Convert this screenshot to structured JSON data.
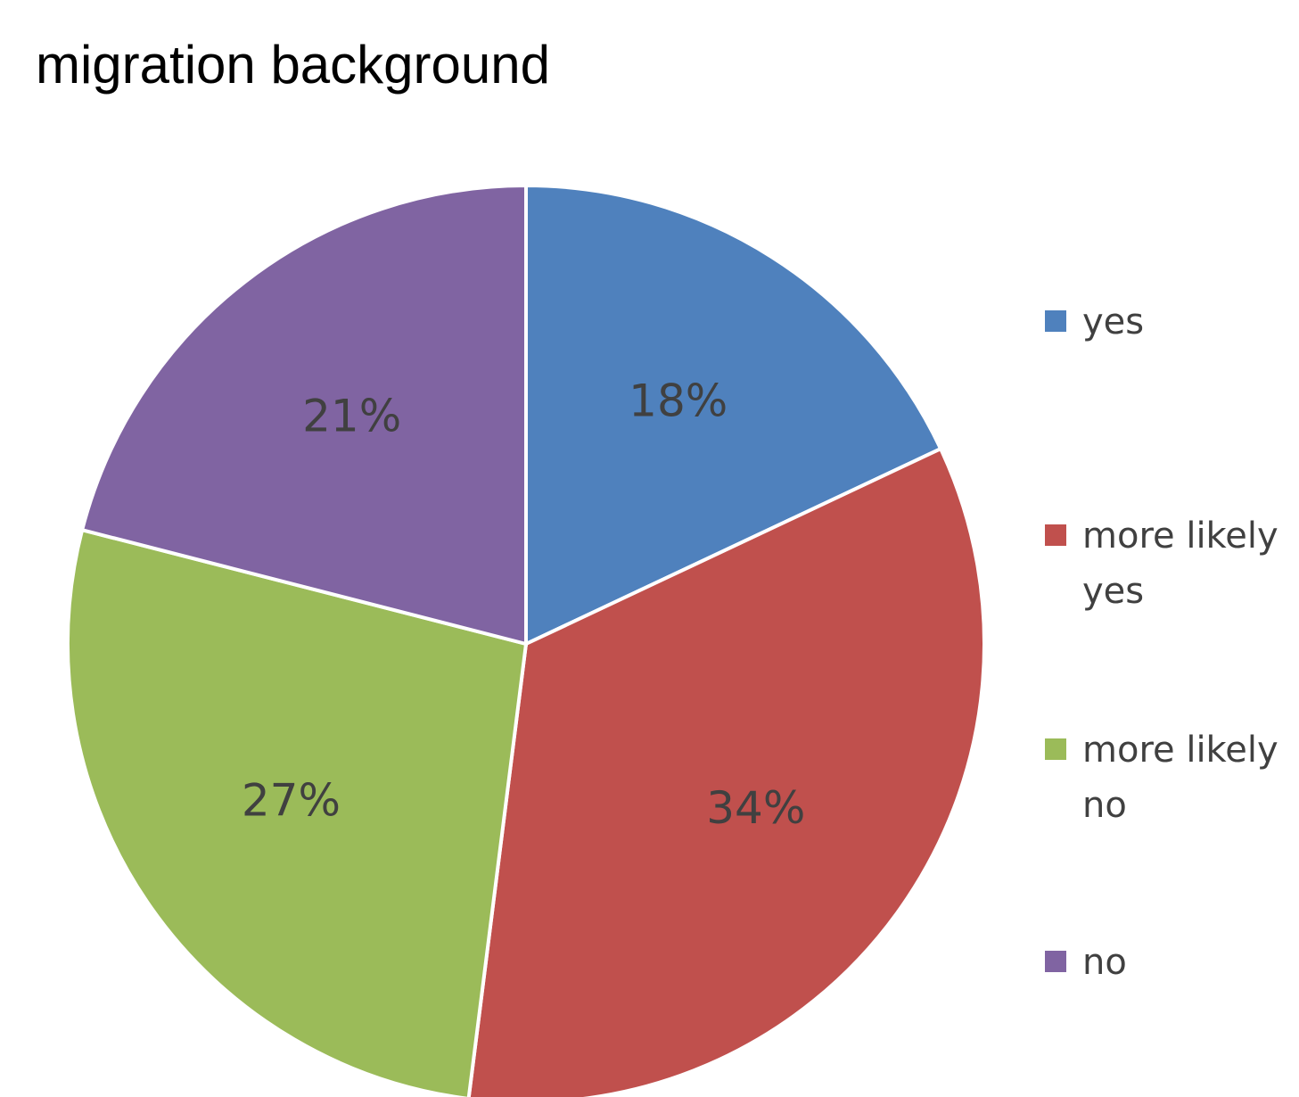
{
  "chart_data": {
    "type": "pie",
    "title": "migration background",
    "start_angle_deg": 0,
    "direction": "clockwise",
    "slices": [
      {
        "label": "yes",
        "value": 18,
        "display": "18%",
        "color": "#4f81bd"
      },
      {
        "label": "more likely yes",
        "value": 34,
        "display": "34%",
        "color": "#c0504d"
      },
      {
        "label": "more likely no",
        "value": 27,
        "display": "27%",
        "color": "#9bbb59"
      },
      {
        "label": "no",
        "value": 21,
        "display": "21%",
        "color": "#8064a2"
      }
    ],
    "legend": {
      "position": "right",
      "items": [
        {
          "label": "yes",
          "color": "#4f81bd"
        },
        {
          "label": "more likely yes",
          "color": "#c0504d"
        },
        {
          "label": "more likely no",
          "color": "#9bbb59"
        },
        {
          "label": "no",
          "color": "#8064a2"
        }
      ]
    }
  }
}
